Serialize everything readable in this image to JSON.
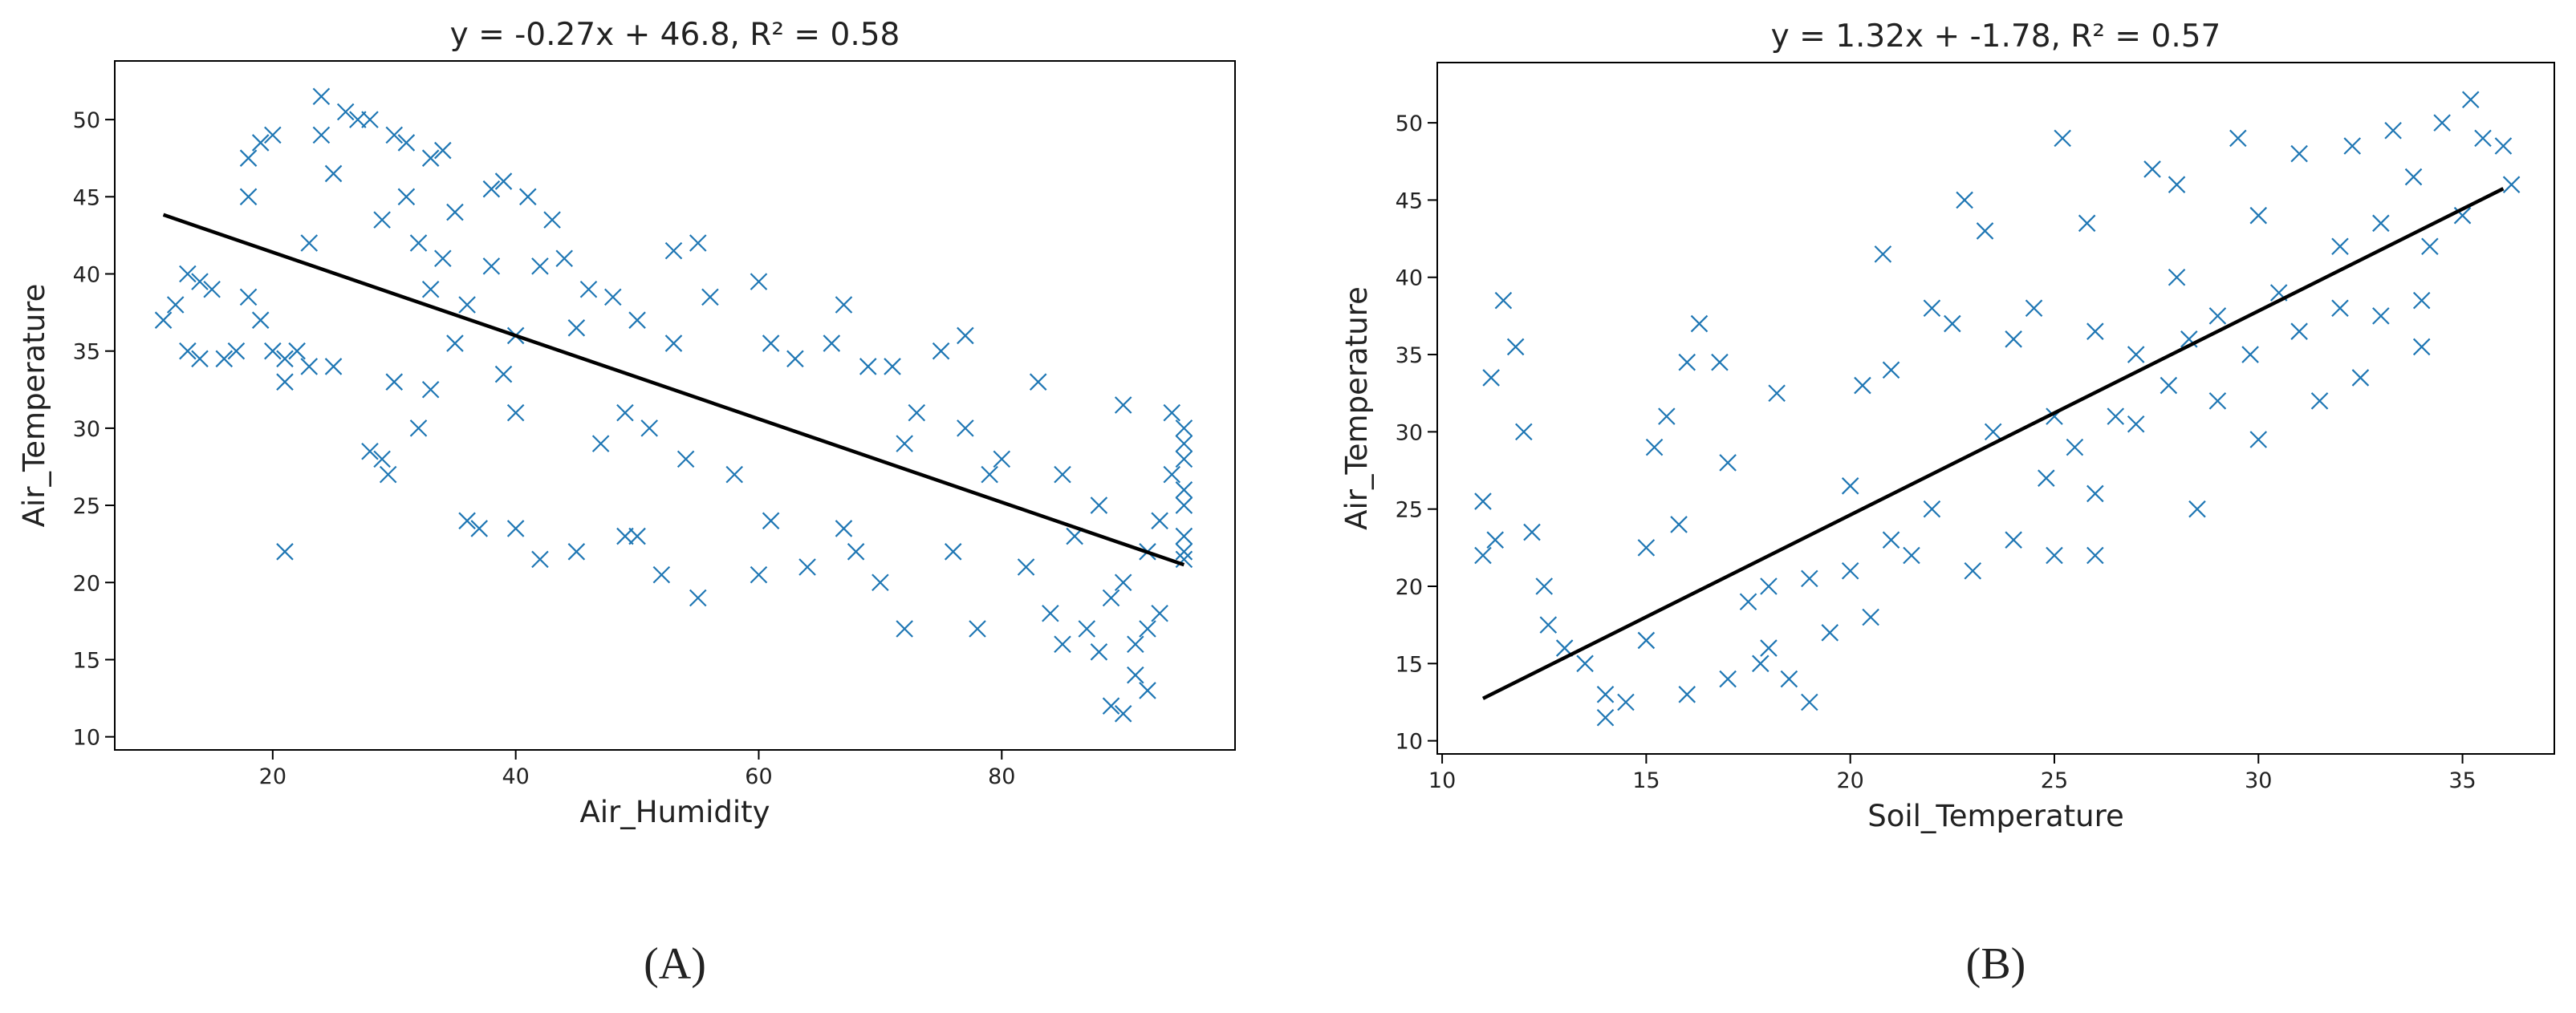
{
  "chart_data": [
    {
      "type": "scatter",
      "title": "y = -0.27x + 46.8, R² = 0.58",
      "xlabel": "Air_Humidity",
      "ylabel": "Air_Temperature",
      "panel_label": "(A)",
      "xlim": [
        7,
        99.2
      ],
      "ylim": [
        9.15,
        53.8
      ],
      "xticks": [
        20,
        40,
        60,
        80
      ],
      "yticks": [
        10,
        15,
        20,
        25,
        30,
        35,
        40,
        45,
        50
      ],
      "series": [
        {
          "mode": "markers",
          "color": "#1f77b4",
          "x": [
            11,
            12,
            13,
            14,
            13,
            15,
            14,
            16,
            17,
            18,
            18,
            19,
            20,
            18,
            19,
            20,
            21,
            21,
            22,
            23,
            21,
            23,
            24,
            24,
            25,
            25,
            26,
            27,
            28,
            28,
            29,
            29,
            29.5,
            30,
            30,
            31,
            31,
            32,
            32,
            33,
            33,
            33,
            34,
            34,
            35,
            35,
            36,
            36,
            37,
            38,
            38,
            39,
            39,
            40,
            40,
            40,
            41,
            42,
            42,
            43,
            44,
            45,
            45,
            46,
            47,
            48,
            49,
            49,
            50,
            50,
            51,
            52,
            53,
            53,
            54,
            55,
            55,
            56,
            58,
            60,
            60,
            61,
            61,
            63,
            64,
            66,
            67,
            67,
            68,
            69,
            70,
            71,
            72,
            72,
            73,
            75,
            76,
            77,
            77,
            78,
            79,
            80,
            82,
            83,
            84,
            85,
            85,
            86,
            87,
            88,
            88,
            89,
            89,
            90,
            90,
            90,
            91,
            91,
            92,
            92,
            92,
            93,
            93,
            94,
            94,
            95,
            95,
            95,
            95,
            95,
            95,
            95,
            95
          ],
          "values": [
            37,
            38,
            40,
            39.5,
            35,
            39,
            34.5,
            34.5,
            35,
            45,
            47.5,
            48.5,
            49,
            38.5,
            37,
            35,
            33,
            34.5,
            35,
            34,
            22,
            42,
            49,
            51.5,
            46.5,
            34,
            50.5,
            50,
            28.5,
            50,
            43.5,
            28,
            27,
            33,
            49,
            45,
            48.5,
            42,
            30,
            47.5,
            39,
            32.5,
            48,
            41,
            44,
            35.5,
            38,
            24,
            23.5,
            40.5,
            45.5,
            46,
            33.5,
            31,
            23.5,
            36,
            45,
            21.5,
            40.5,
            43.5,
            41,
            36.5,
            22,
            39,
            29,
            38.5,
            31,
            23,
            37,
            23,
            30,
            20.5,
            41.5,
            35.5,
            28,
            42,
            19,
            38.5,
            27,
            20.5,
            39.5,
            35.5,
            24,
            34.5,
            21,
            35.5,
            38,
            23.5,
            22,
            34,
            20,
            34,
            17,
            29,
            31,
            35,
            22,
            36,
            30,
            17,
            27,
            28,
            21,
            33,
            18,
            27,
            16,
            23,
            17,
            15.5,
            25,
            12,
            19,
            11.5,
            31.5,
            20,
            14,
            16,
            13,
            17,
            22,
            18,
            24,
            27,
            31,
            30,
            25,
            22,
            28,
            21.5,
            23,
            26,
            29
          ]
        },
        {
          "mode": "line",
          "color": "#000000",
          "x": [
            11,
            95
          ],
          "values": [
            43.83,
            21.15
          ]
        }
      ]
    },
    {
      "type": "scatter",
      "title": "y = 1.32x + -1.78, R² = 0.57",
      "xlabel": "Soil_Temperature",
      "ylabel": "Air_Temperature",
      "panel_label": "(B)",
      "xlim": [
        9.88,
        37.25
      ],
      "ylim": [
        9.15,
        53.9
      ],
      "xticks": [
        10,
        15,
        20,
        25,
        30,
        35
      ],
      "yticks": [
        10,
        15,
        20,
        25,
        30,
        35,
        40,
        45,
        50
      ],
      "series": [
        {
          "mode": "markers",
          "color": "#1f77b4",
          "x": [
            11,
            11,
            11.2,
            11.3,
            11.5,
            11.8,
            12,
            12.2,
            12.5,
            12.6,
            13,
            13.5,
            14,
            14,
            14.5,
            15,
            15,
            15.2,
            15.5,
            15.8,
            16,
            16,
            16.3,
            16.8,
            17,
            17,
            17.5,
            17.8,
            18,
            18,
            18.2,
            18.5,
            19,
            19,
            19.5,
            20,
            20,
            20.3,
            20.5,
            20.8,
            21,
            21,
            21.5,
            22,
            22,
            22.5,
            22.8,
            23,
            23.3,
            23.5,
            24,
            24,
            24.5,
            24.8,
            25,
            25,
            25.2,
            25.5,
            25.8,
            26,
            26,
            26,
            26.5,
            27,
            27,
            27.4,
            27.8,
            28,
            28,
            28.3,
            28.5,
            29,
            29,
            29.5,
            29.8,
            30,
            30,
            30.5,
            31,
            31,
            31.5,
            32,
            32,
            32.3,
            32.5,
            33,
            33,
            33.3,
            33.8,
            34,
            34,
            34.2,
            34.5,
            35,
            35.2,
            35.5,
            36,
            36.2
          ],
          "values": [
            22,
            25.5,
            33.5,
            23,
            38.5,
            35.5,
            30,
            23.5,
            20,
            17.5,
            16,
            15,
            13,
            11.5,
            12.5,
            22.5,
            16.5,
            29,
            31,
            24,
            34.5,
            13,
            37,
            34.5,
            28,
            14,
            19,
            15,
            16,
            20,
            32.5,
            14,
            12.5,
            20.5,
            17,
            21,
            26.5,
            33,
            18,
            41.5,
            23,
            34,
            22,
            25,
            38,
            37,
            45,
            21,
            43,
            30,
            23,
            36,
            38,
            27,
            22,
            31,
            49,
            29,
            43.5,
            36.5,
            26,
            22,
            31,
            35,
            30.5,
            47,
            33,
            40,
            46,
            36,
            25,
            37.5,
            32,
            49,
            35,
            44,
            29.5,
            39,
            36.5,
            48,
            32,
            42,
            38,
            48.5,
            33.5,
            37.5,
            43.5,
            49.5,
            46.5,
            38.5,
            35.5,
            42,
            50,
            44,
            51.5,
            49,
            48.5,
            46
          ]
        },
        {
          "mode": "line",
          "color": "#000000",
          "x": [
            11,
            36
          ],
          "values": [
            12.74,
            45.74
          ]
        }
      ]
    }
  ]
}
